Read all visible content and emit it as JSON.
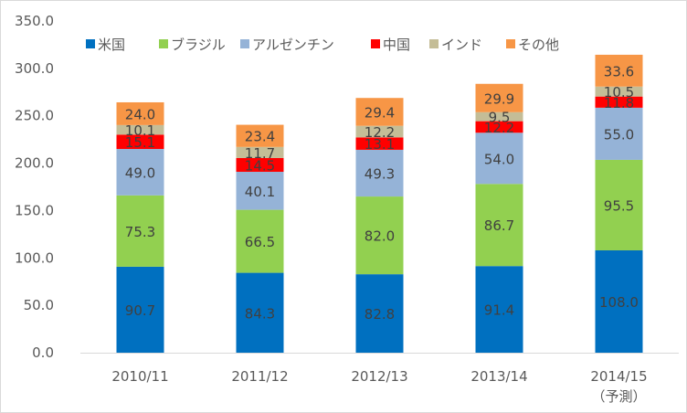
{
  "chart_data": {
    "type": "bar",
    "stacked": true,
    "title": "",
    "xlabel": "",
    "ylabel": "",
    "ylim": [
      0,
      350
    ],
    "yticks": [
      0,
      50,
      100,
      150,
      200,
      250,
      300,
      350
    ],
    "ytick_labels": [
      "0.0",
      "50.0",
      "100.0",
      "150.0",
      "200.0",
      "250.0",
      "300.0",
      "350.0"
    ],
    "grid": false,
    "legend_position": "top",
    "categories": [
      "2010/11",
      "2011/12",
      "2012/13",
      "2013/14",
      "2014/15"
    ],
    "category_sublabels": [
      "",
      "",
      "",
      "",
      "（予測）"
    ],
    "series": [
      {
        "name": "米国",
        "color": "#0070c0",
        "values": [
          90.7,
          84.3,
          82.8,
          91.4,
          108.0
        ]
      },
      {
        "name": "ブラジル",
        "color": "#92d050",
        "values": [
          75.3,
          66.5,
          82.0,
          86.7,
          95.5
        ]
      },
      {
        "name": "アルゼンチン",
        "color": "#95b3d7",
        "values": [
          49.0,
          40.1,
          49.3,
          54.0,
          55.0
        ]
      },
      {
        "name": "中国",
        "color": "#ff0000",
        "values": [
          15.1,
          14.5,
          13.1,
          12.2,
          11.8
        ]
      },
      {
        "name": "インド",
        "color": "#c4bd97",
        "values": [
          10.1,
          11.7,
          12.2,
          9.5,
          10.5
        ]
      },
      {
        "name": "その他",
        "color": "#f79646",
        "values": [
          24.0,
          23.4,
          29.4,
          29.9,
          33.6
        ]
      }
    ]
  }
}
